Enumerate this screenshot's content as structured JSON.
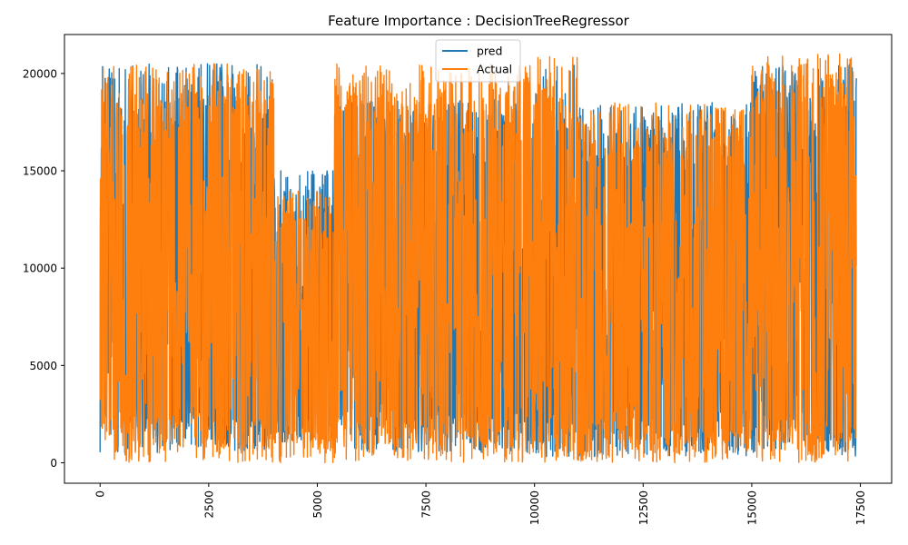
{
  "chart_data": {
    "type": "line",
    "title": "Feature Importance : DecisionTreeRegressor",
    "xlabel": "",
    "ylabel": "",
    "xlim": [
      -820,
      18220
    ],
    "ylim": [
      -1050,
      22000
    ],
    "x_ticks": [
      0,
      2500,
      5000,
      7500,
      10000,
      12500,
      15000,
      17500
    ],
    "x_tick_labels": [
      "0",
      "2500",
      "5000",
      "7500",
      "10000",
      "12500",
      "15000",
      "17500"
    ],
    "x_tick_rotation": 90,
    "y_ticks": [
      0,
      5000,
      10000,
      15000,
      20000
    ],
    "y_tick_labels": [
      "0",
      "5000",
      "10000",
      "15000",
      "20000"
    ],
    "legend_position": "upper center",
    "grid": false,
    "n_points": 17414,
    "series": [
      {
        "name": "pred",
        "color": "#1f77b4",
        "description": "dense oscillating predictions, mostly between 500 and 20500",
        "segments": [
          {
            "x": [
              0,
              4000
            ],
            "min": 500,
            "max": 20500
          },
          {
            "x": [
              4000,
              5400
            ],
            "min": 1000,
            "max": 15000
          },
          {
            "x": [
              5400,
              10000
            ],
            "min": 500,
            "max": 18700
          },
          {
            "x": [
              10000,
              11000
            ],
            "min": 200,
            "max": 20500
          },
          {
            "x": [
              11000,
              15000
            ],
            "min": 300,
            "max": 18500
          },
          {
            "x": [
              15000,
              17414
            ],
            "min": 300,
            "max": 20500
          }
        ]
      },
      {
        "name": "Actual",
        "color": "#ff7f0e",
        "description": "dense oscillating actual values, range 0 to ~21000",
        "segments": [
          {
            "x": [
              0,
              4000
            ],
            "min": 0,
            "max": 20500
          },
          {
            "x": [
              4000,
              5400
            ],
            "min": 0,
            "max": 14000
          },
          {
            "x": [
              5400,
              10000
            ],
            "min": 0,
            "max": 20500
          },
          {
            "x": [
              10000,
              11000
            ],
            "min": 0,
            "max": 21000
          },
          {
            "x": [
              11000,
              15000
            ],
            "min": 0,
            "max": 18500
          },
          {
            "x": [
              15000,
              17414
            ],
            "min": 0,
            "max": 21000
          }
        ]
      }
    ]
  }
}
